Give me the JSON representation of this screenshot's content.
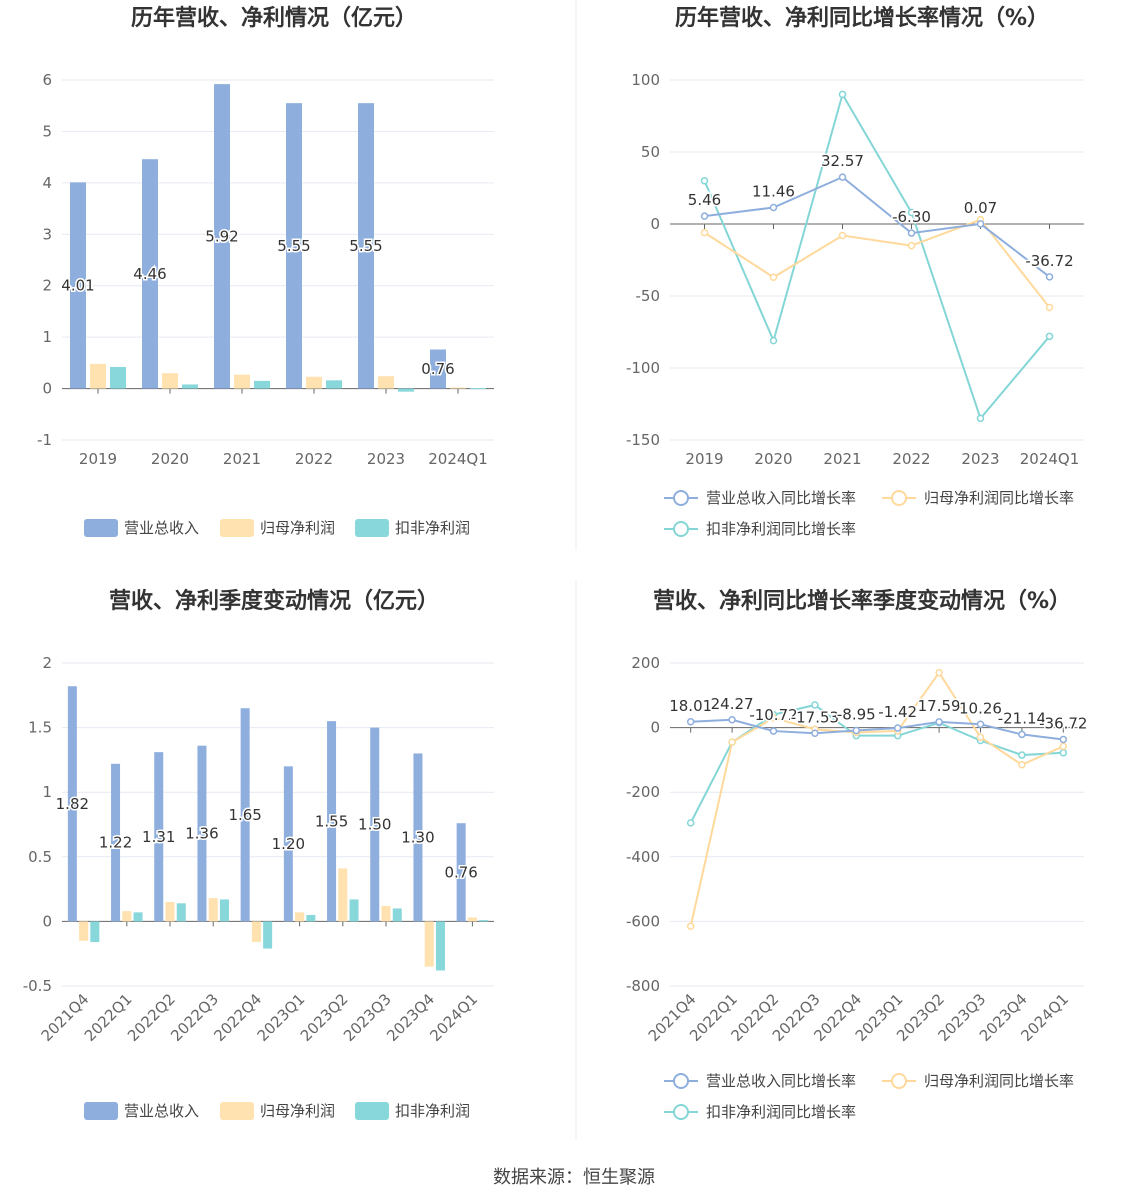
{
  "colors": {
    "revenue": "#8eaedd",
    "parent": "#ffe2b0",
    "deducted": "#87d7db",
    "line_revenue": "#8eaedd",
    "line_parent": "#ffd99b",
    "line_deducted": "#84d6d6",
    "grid": "#e6e9f2",
    "axis": "#666666"
  },
  "source_text": "数据来源：恒生聚源",
  "chart_data": [
    {
      "id": "annual",
      "type": "bar",
      "title": "历年营收、净利情况（亿元）",
      "categories": [
        "2019",
        "2020",
        "2021",
        "2022",
        "2023",
        "2024Q1"
      ],
      "ylim": [
        -1,
        6
      ],
      "yticks": [
        -1,
        0,
        1,
        2,
        3,
        4,
        5,
        6
      ],
      "series": [
        {
          "name": "营业总收入",
          "values": [
            4.01,
            4.46,
            5.92,
            5.55,
            5.55,
            0.76
          ]
        },
        {
          "name": "归母净利润",
          "values": [
            0.48,
            0.3,
            0.27,
            0.23,
            0.24,
            0.02
          ]
        },
        {
          "name": "扣非净利润",
          "values": [
            0.42,
            0.08,
            0.15,
            0.16,
            -0.06,
            0.01
          ]
        }
      ],
      "labels": [
        "4.01",
        "4.46",
        "5.92",
        "5.55",
        "5.55",
        "0.76"
      ]
    },
    {
      "id": "annual_growth",
      "type": "line",
      "title": "历年营收、净利同比增长率情况（%）",
      "categories": [
        "2019",
        "2020",
        "2021",
        "2022",
        "2023",
        "2024Q1"
      ],
      "ylim": [
        -150,
        100
      ],
      "yticks": [
        -150,
        -100,
        -50,
        0,
        50,
        100
      ],
      "series": [
        {
          "name": "营业总收入同比增长率",
          "values": [
            5.46,
            11.46,
            32.57,
            -6.3,
            0.07,
            -36.72
          ]
        },
        {
          "name": "归母净利润同比增长率",
          "values": [
            -6,
            -37,
            -8,
            -15,
            3,
            -58
          ]
        },
        {
          "name": "扣非净利润同比增长率",
          "values": [
            30,
            -81,
            90,
            8,
            -135,
            -78
          ]
        }
      ],
      "labels": [
        "5.46",
        "11.46",
        "32.57",
        "-6.30",
        "0.07",
        "-36.72"
      ]
    },
    {
      "id": "quarterly",
      "type": "bar",
      "title": "营收、净利季度变动情况（亿元）",
      "categories": [
        "2021Q4",
        "2022Q1",
        "2022Q2",
        "2022Q3",
        "2022Q4",
        "2023Q1",
        "2023Q2",
        "2023Q3",
        "2023Q4",
        "2024Q1"
      ],
      "ylim": [
        -0.5,
        2
      ],
      "yticks": [
        -0.5,
        0,
        0.5,
        1,
        1.5,
        2
      ],
      "series": [
        {
          "name": "营业总收入",
          "values": [
            1.82,
            1.22,
            1.31,
            1.36,
            1.65,
            1.2,
            1.55,
            1.5,
            1.3,
            0.76
          ]
        },
        {
          "name": "归母净利润",
          "values": [
            -0.15,
            0.08,
            0.15,
            0.18,
            -0.16,
            0.07,
            0.41,
            0.12,
            -0.35,
            0.03
          ]
        },
        {
          "name": "扣非净利润",
          "values": [
            -0.16,
            0.07,
            0.14,
            0.17,
            -0.21,
            0.05,
            0.17,
            0.1,
            -0.38,
            0.01
          ]
        }
      ],
      "labels": [
        "1.82",
        "1.22",
        "1.31",
        "1.36",
        "1.65",
        "1.20",
        "1.55",
        "1.50",
        "1.30",
        "0.76"
      ]
    },
    {
      "id": "quarterly_growth",
      "type": "line",
      "title": "营收、净利同比增长率季度变动情况（%）",
      "categories": [
        "2021Q4",
        "2022Q1",
        "2022Q2",
        "2022Q3",
        "2022Q4",
        "2023Q1",
        "2023Q2",
        "2023Q3",
        "2023Q4",
        "2024Q1"
      ],
      "ylim": [
        -800,
        200
      ],
      "yticks": [
        -800,
        -600,
        -400,
        -200,
        0,
        200
      ],
      "series": [
        {
          "name": "营业总收入同比增长率",
          "values": [
            18.01,
            24.27,
            -10.72,
            -17.53,
            -8.95,
            -1.42,
            17.59,
            10.26,
            -21.14,
            -36.72
          ]
        },
        {
          "name": "归母净利润同比增长率",
          "values": [
            -615,
            -45,
            30,
            -5,
            -15,
            -10,
            170,
            -30,
            -115,
            -58
          ]
        },
        {
          "name": "扣非净利润同比增长率",
          "values": [
            -295,
            -45,
            40,
            70,
            -25,
            -25,
            15,
            -40,
            -85,
            -78
          ]
        }
      ],
      "labels": [
        "18.01",
        "24.27",
        "-10.72",
        "-17.53",
        "-8.95",
        "-1.42",
        "17.59",
        "10.26",
        "-21.14",
        "-36.72"
      ]
    }
  ]
}
